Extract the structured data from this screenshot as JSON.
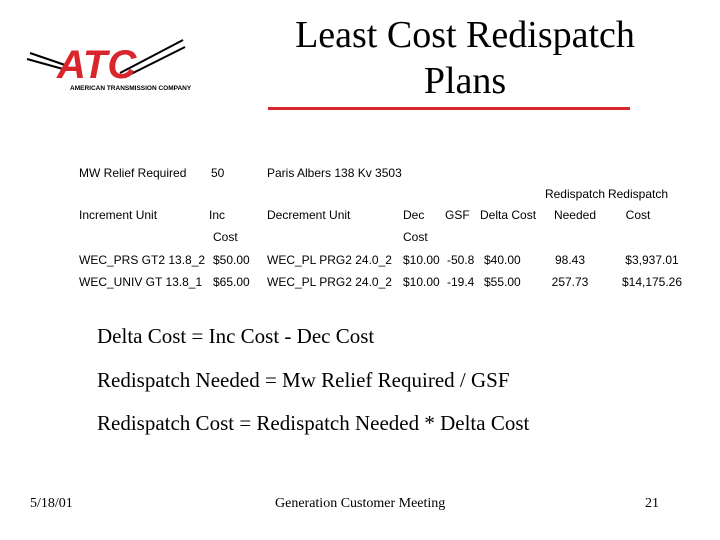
{
  "header": {
    "title": "Least Cost Redispatch Plans",
    "logo": {
      "mark": "ATC",
      "tagline": "AMERICAN TRANSMISSION COMPANY"
    }
  },
  "info": {
    "label": "MW Relief Required",
    "value": "50",
    "location": "Paris Albers 138 Kv 3503"
  },
  "table": {
    "headers": [
      [
        "Increment Unit"
      ],
      [
        "Inc",
        "Cost"
      ],
      [
        "Decrement Unit"
      ],
      [
        "Dec",
        "Cost"
      ],
      [
        "GSF"
      ],
      [
        "Delta Cost"
      ],
      [
        "Redispatch",
        "Needed"
      ],
      [
        "Redispatch",
        "Cost"
      ]
    ],
    "rows": [
      [
        "WEC_PRS GT2 13.8_2",
        "$50.00",
        "WEC_PL PRG2 24.0_2",
        "$10.00",
        "-50.8",
        "$40.00",
        "98.43",
        "$3,937.01"
      ],
      [
        "WEC_UNIV GT 13.8_1",
        "$65.00",
        "WEC_PL PRG2 24.0_2",
        "$10.00",
        "-19.4",
        "$55.00",
        "257.73",
        "$14,175.26"
      ]
    ]
  },
  "formulas": [
    "Delta Cost = Inc Cost - Dec Cost",
    "Redispatch Needed = Mw Relief Required / GSF",
    "Redispatch Cost = Redispatch Needed * Delta Cost"
  ],
  "footer": {
    "date": "5/18/01",
    "event": "Generation Customer Meeting",
    "page": "21"
  }
}
